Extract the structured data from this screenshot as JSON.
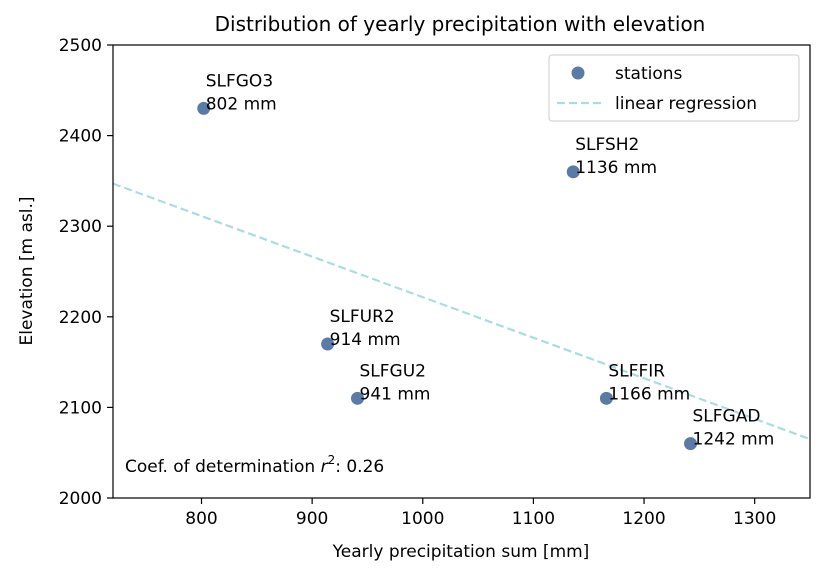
{
  "chart_data": {
    "type": "scatter",
    "title": "Distribution of yearly precipitation with elevation",
    "xlabel": "Yearly precipitation sum [mm]",
    "ylabel": "Elevation [m asl.]",
    "xlim": [
      720,
      1350
    ],
    "ylim": [
      2000,
      2500
    ],
    "xticks": [
      800,
      900,
      1000,
      1100,
      1200,
      1300
    ],
    "yticks": [
      2000,
      2100,
      2200,
      2300,
      2400,
      2500
    ],
    "grid": false,
    "legend_position": "top-right",
    "colors": {
      "points": "#5a7ba6",
      "regression": "#a9dce3"
    },
    "series": [
      {
        "name": "stations",
        "points": [
          {
            "label": "SLFGO3",
            "value_label": "802 mm",
            "x": 802,
            "y": 2430
          },
          {
            "label": "SLFSH2",
            "value_label": "1136 mm",
            "x": 1136,
            "y": 2360
          },
          {
            "label": "SLFUR2",
            "value_label": "914 mm",
            "x": 914,
            "y": 2170
          },
          {
            "label": "SLFGU2",
            "value_label": "941 mm",
            "x": 941,
            "y": 2110
          },
          {
            "label": "SLFFIR",
            "value_label": "1166 mm",
            "x": 1166,
            "y": 2110
          },
          {
            "label": "SLFGAD",
            "value_label": "1242 mm",
            "x": 1242,
            "y": 2060
          }
        ]
      },
      {
        "name": "linear regression",
        "line": [
          {
            "x": 720,
            "y": 2347
          },
          {
            "x": 1350,
            "y": 2065
          }
        ]
      }
    ],
    "annotation": {
      "prefix": "Coef. of determination ",
      "symbol": "r",
      "exponent": "2",
      "suffix": ": 0.26"
    }
  }
}
